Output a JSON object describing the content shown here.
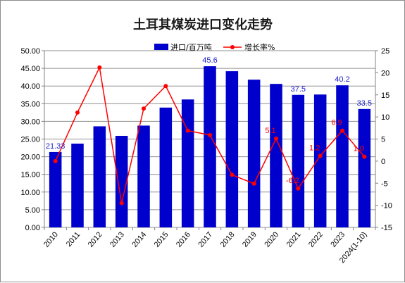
{
  "chart_data": {
    "type": "bar+line",
    "title": "土耳其煤炭进口变化走势",
    "categories": [
      "2010",
      "2011",
      "2012",
      "2013",
      "2014",
      "2015",
      "2016",
      "2017",
      "2018",
      "2019",
      "2020",
      "2021",
      "2022",
      "2023",
      "2024(1-10)"
    ],
    "series": [
      {
        "name": "进口/百万吨",
        "type": "bar",
        "axis": "left",
        "color": "#0000cc",
        "values": [
          21.33,
          23.7,
          28.6,
          25.9,
          28.8,
          33.9,
          36.2,
          45.6,
          44.2,
          41.8,
          40.6,
          37.5,
          37.6,
          40.2,
          33.5
        ],
        "labeled": [
          true,
          false,
          false,
          false,
          false,
          false,
          false,
          true,
          false,
          false,
          false,
          true,
          false,
          true,
          true
        ]
      },
      {
        "name": "增长率%",
        "type": "line",
        "axis": "right",
        "color": "#ff0000",
        "values": [
          0,
          11,
          21.2,
          -9.5,
          11.9,
          17,
          6.9,
          5.9,
          -3.1,
          -5.1,
          5.1,
          -6.2,
          1.2,
          6.9,
          1.0
        ],
        "labels": [
          "",
          "",
          "",
          "",
          "",
          "",
          "",
          "",
          "",
          "",
          "5.1",
          "-6.2",
          "1.2",
          "6.9",
          "1.0"
        ]
      }
    ],
    "y_left": {
      "min": 0,
      "max": 50,
      "step": 5,
      "ticks": [
        "0.00",
        "5.00",
        "10.00",
        "15.00",
        "20.00",
        "25.00",
        "30.00",
        "35.00",
        "40.00",
        "45.00",
        "50.00"
      ]
    },
    "y_right": {
      "min": -15,
      "max": 25,
      "step": 5,
      "ticks": [
        "-15",
        "-10",
        "-5",
        "0",
        "5",
        "10",
        "15",
        "20",
        "25"
      ]
    },
    "grid": "horizontal",
    "legend": "top-right"
  }
}
